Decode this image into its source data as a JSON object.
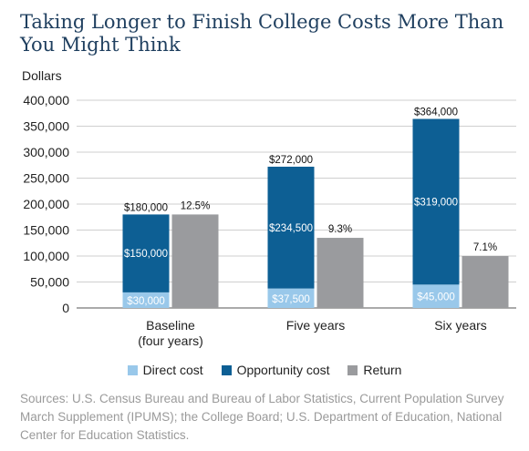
{
  "title": "Taking Longer to Finish College Costs More Than You Might Think",
  "source": "Sources: U.S. Census Bureau and Bureau of Labor Statistics, Current Population Survey March Supplement (IPUMS); the College Board; U.S. Department of Education, National Center for Education Statistics.",
  "colors": {
    "direct": "#99c8ea",
    "opportunity": "#0d5f94",
    "return": "#9a9b9e"
  },
  "chart_data": {
    "type": "bar",
    "ylabel": "Dollars",
    "ylim": [
      0,
      400000
    ],
    "yticks": [
      "0",
      "50,000",
      "100,000",
      "150,000",
      "200,000",
      "250,000",
      "300,000",
      "350,000",
      "400,000"
    ],
    "grid": true,
    "legend_position": "bottom",
    "categories": [
      {
        "label": [
          "Baseline",
          "(four years)"
        ],
        "direct": 30000,
        "opportunity": 150000,
        "total": 180000,
        "return": 180000,
        "direct_label": "$30,000",
        "opportunity_label": "$150,000",
        "total_label": "$180,000",
        "return_label": "12.5%"
      },
      {
        "label": [
          "Five years"
        ],
        "direct": 37500,
        "opportunity": 234500,
        "total": 272000,
        "return": 135000,
        "direct_label": "$37,500",
        "opportunity_label": "$234,500",
        "total_label": "$272,000",
        "return_label": "9.3%"
      },
      {
        "label": [
          "Six years"
        ],
        "direct": 45000,
        "opportunity": 319000,
        "total": 364000,
        "return": 100000,
        "direct_label": "$45,000",
        "opportunity_label": "$319,000",
        "total_label": "$364,000",
        "return_label": "7.1%"
      }
    ],
    "series": [
      {
        "name": "Direct cost",
        "key": "direct"
      },
      {
        "name": "Opportunity cost",
        "key": "opportunity"
      },
      {
        "name": "Return",
        "key": "return"
      }
    ]
  }
}
